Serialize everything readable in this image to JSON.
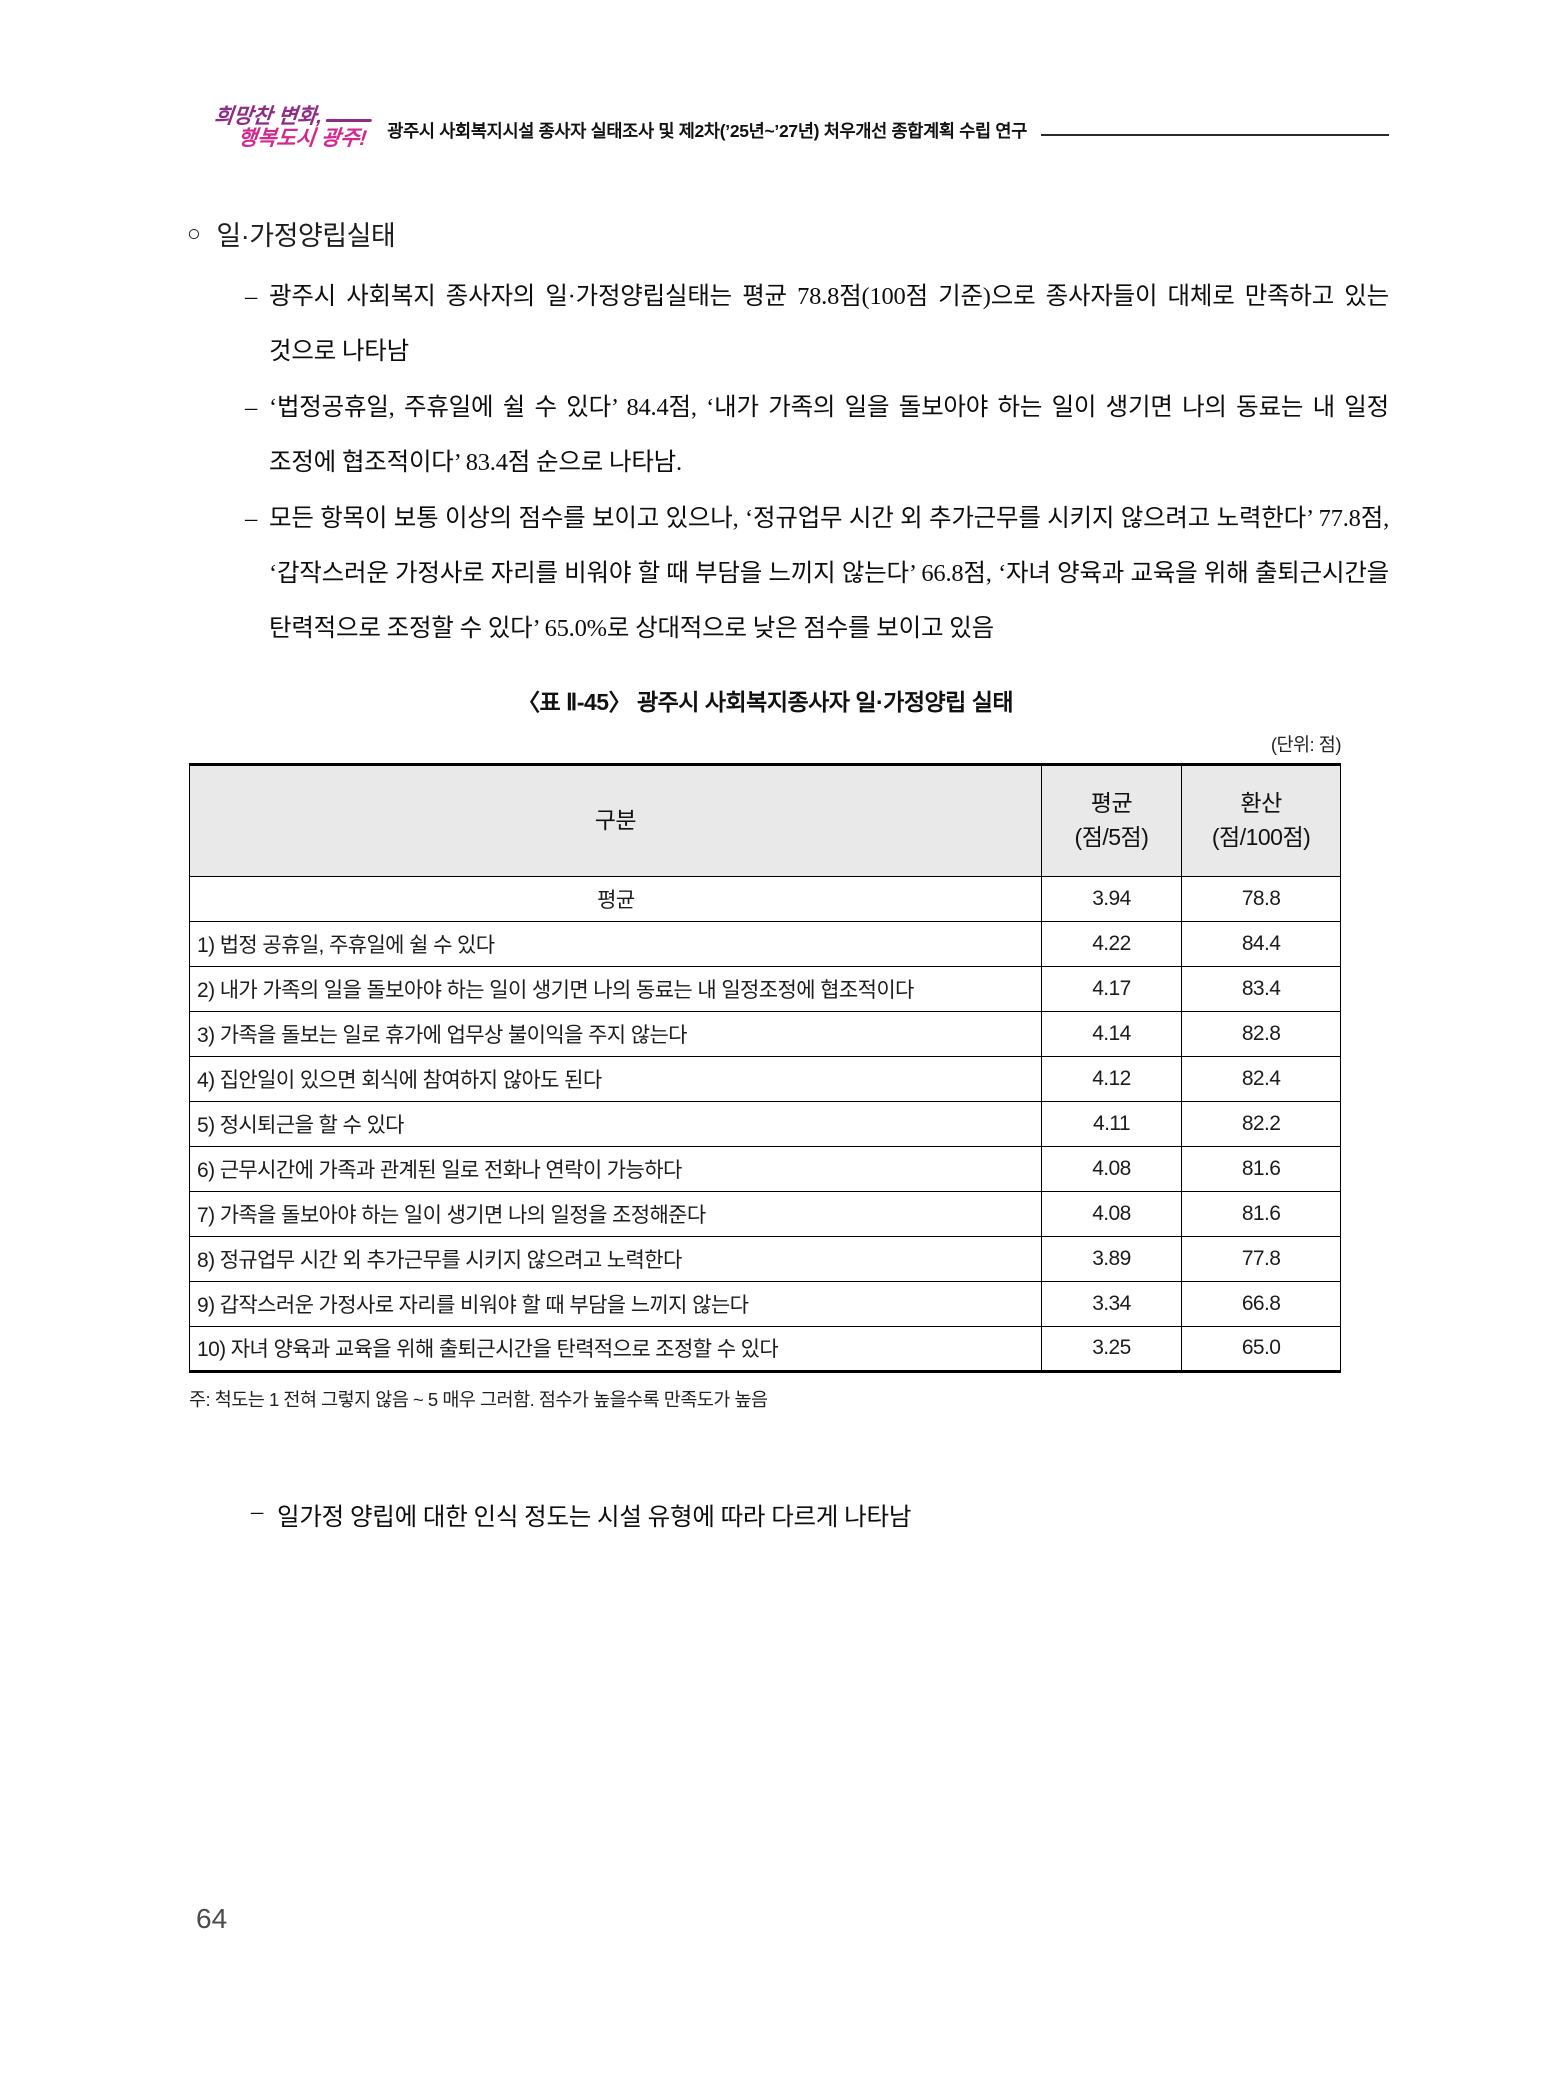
{
  "header": {
    "logo_line1": "희망찬 변화,",
    "logo_line2": "행복도시 광주!",
    "doc_title": "광주시 사회복지시설 종사자 실태조사 및 제2차(’25년~’27년) 처우개선 종합계획 수립 연구"
  },
  "content": {
    "section_marker": "○",
    "section_title": "일·가정양립실태",
    "bullet_marker": "–",
    "bullets": [
      {
        "text": "광주시 사회복지 종사자의 일·가정양립실태는 평균 78.8점(100점 기준)으로 종사자들이 대체로 만족하고 있는 것으로 나타남"
      },
      {
        "text": "‘법정공휴일, 주휴일에 쉴 수 있다’ 84.4점, ‘내가 가족의 일을 돌보아야 하는 일이 생기면 나의 동료는 내 일정 조정에 협조적이다’ 83.4점 순으로 나타남."
      },
      {
        "text": "모든 항목이 보통 이상의 점수를 보이고 있으나, ‘정규업무 시간 외 추가근무를 시키지 않으려고 노력한다’ 77.8점, ‘갑작스러운 가정사로 자리를 비워야 할 때 부담을 느끼지 않는다’ 66.8점, ‘자녀 양육과 교육을 위해 출퇴근시간을 탄력적으로 조정할 수 있다’ 65.0%로 상대적으로 낮은 점수를 보이고 있음"
      }
    ],
    "closing_bullet": "일가정 양립에 대한 인식 정도는 시설 유형에 따라 다르게 나타남"
  },
  "table": {
    "title": "〈표 Ⅱ-45〉 광주시 사회복지종사자 일·가정양립 실태",
    "unit_label": "(단위: 점)",
    "columns": {
      "category": "구분",
      "avg": "평균",
      "avg_sub": "(점/5점)",
      "scaled": "환산",
      "scaled_sub": "(점/100점)"
    },
    "rows": [
      {
        "label": "평균",
        "avg": "3.94",
        "scaled": "78.8"
      },
      {
        "label": "1) 법정 공휴일, 주휴일에 쉴 수 있다",
        "avg": "4.22",
        "scaled": "84.4"
      },
      {
        "label": "2) 내가 가족의 일을 돌보아야 하는 일이 생기면 나의 동료는 내 일정조정에 협조적이다",
        "avg": "4.17",
        "scaled": "83.4"
      },
      {
        "label": "3) 가족을 돌보는 일로 휴가에 업무상 불이익을 주지 않는다",
        "avg": "4.14",
        "scaled": "82.8"
      },
      {
        "label": "4) 집안일이 있으면 회식에 참여하지 않아도 된다",
        "avg": "4.12",
        "scaled": "82.4"
      },
      {
        "label": "5) 정시퇴근을 할 수 있다",
        "avg": "4.11",
        "scaled": "82.2"
      },
      {
        "label": "6) 근무시간에 가족과 관계된 일로 전화나 연락이 가능하다",
        "avg": "4.08",
        "scaled": "81.6"
      },
      {
        "label": "7) 가족을 돌보아야 하는 일이 생기면 나의 일정을 조정해준다",
        "avg": "4.08",
        "scaled": "81.6"
      },
      {
        "label": "8) 정규업무 시간 외 추가근무를 시키지 않으려고 노력한다",
        "avg": "3.89",
        "scaled": "77.8"
      },
      {
        "label": "9) 갑작스러운 가정사로 자리를 비워야 할 때 부담을 느끼지 않는다",
        "avg": "3.34",
        "scaled": "66.8"
      },
      {
        "label": "10) 자녀 양육과 교육을 위해 출퇴근시간을 탄력적으로 조정할 수 있다",
        "avg": "3.25",
        "scaled": "65.0"
      }
    ],
    "note": "주: 척도는 1 전혀 그렇지 않음 ~ 5 매우 그러함. 점수가 높을수록 만족도가 높음"
  },
  "footer": {
    "page_number": "64"
  },
  "colors": {
    "logo_purple": "#8e2b87",
    "logo_magenta": "#d6268f",
    "table_header_bg": "#e9e9e9"
  }
}
